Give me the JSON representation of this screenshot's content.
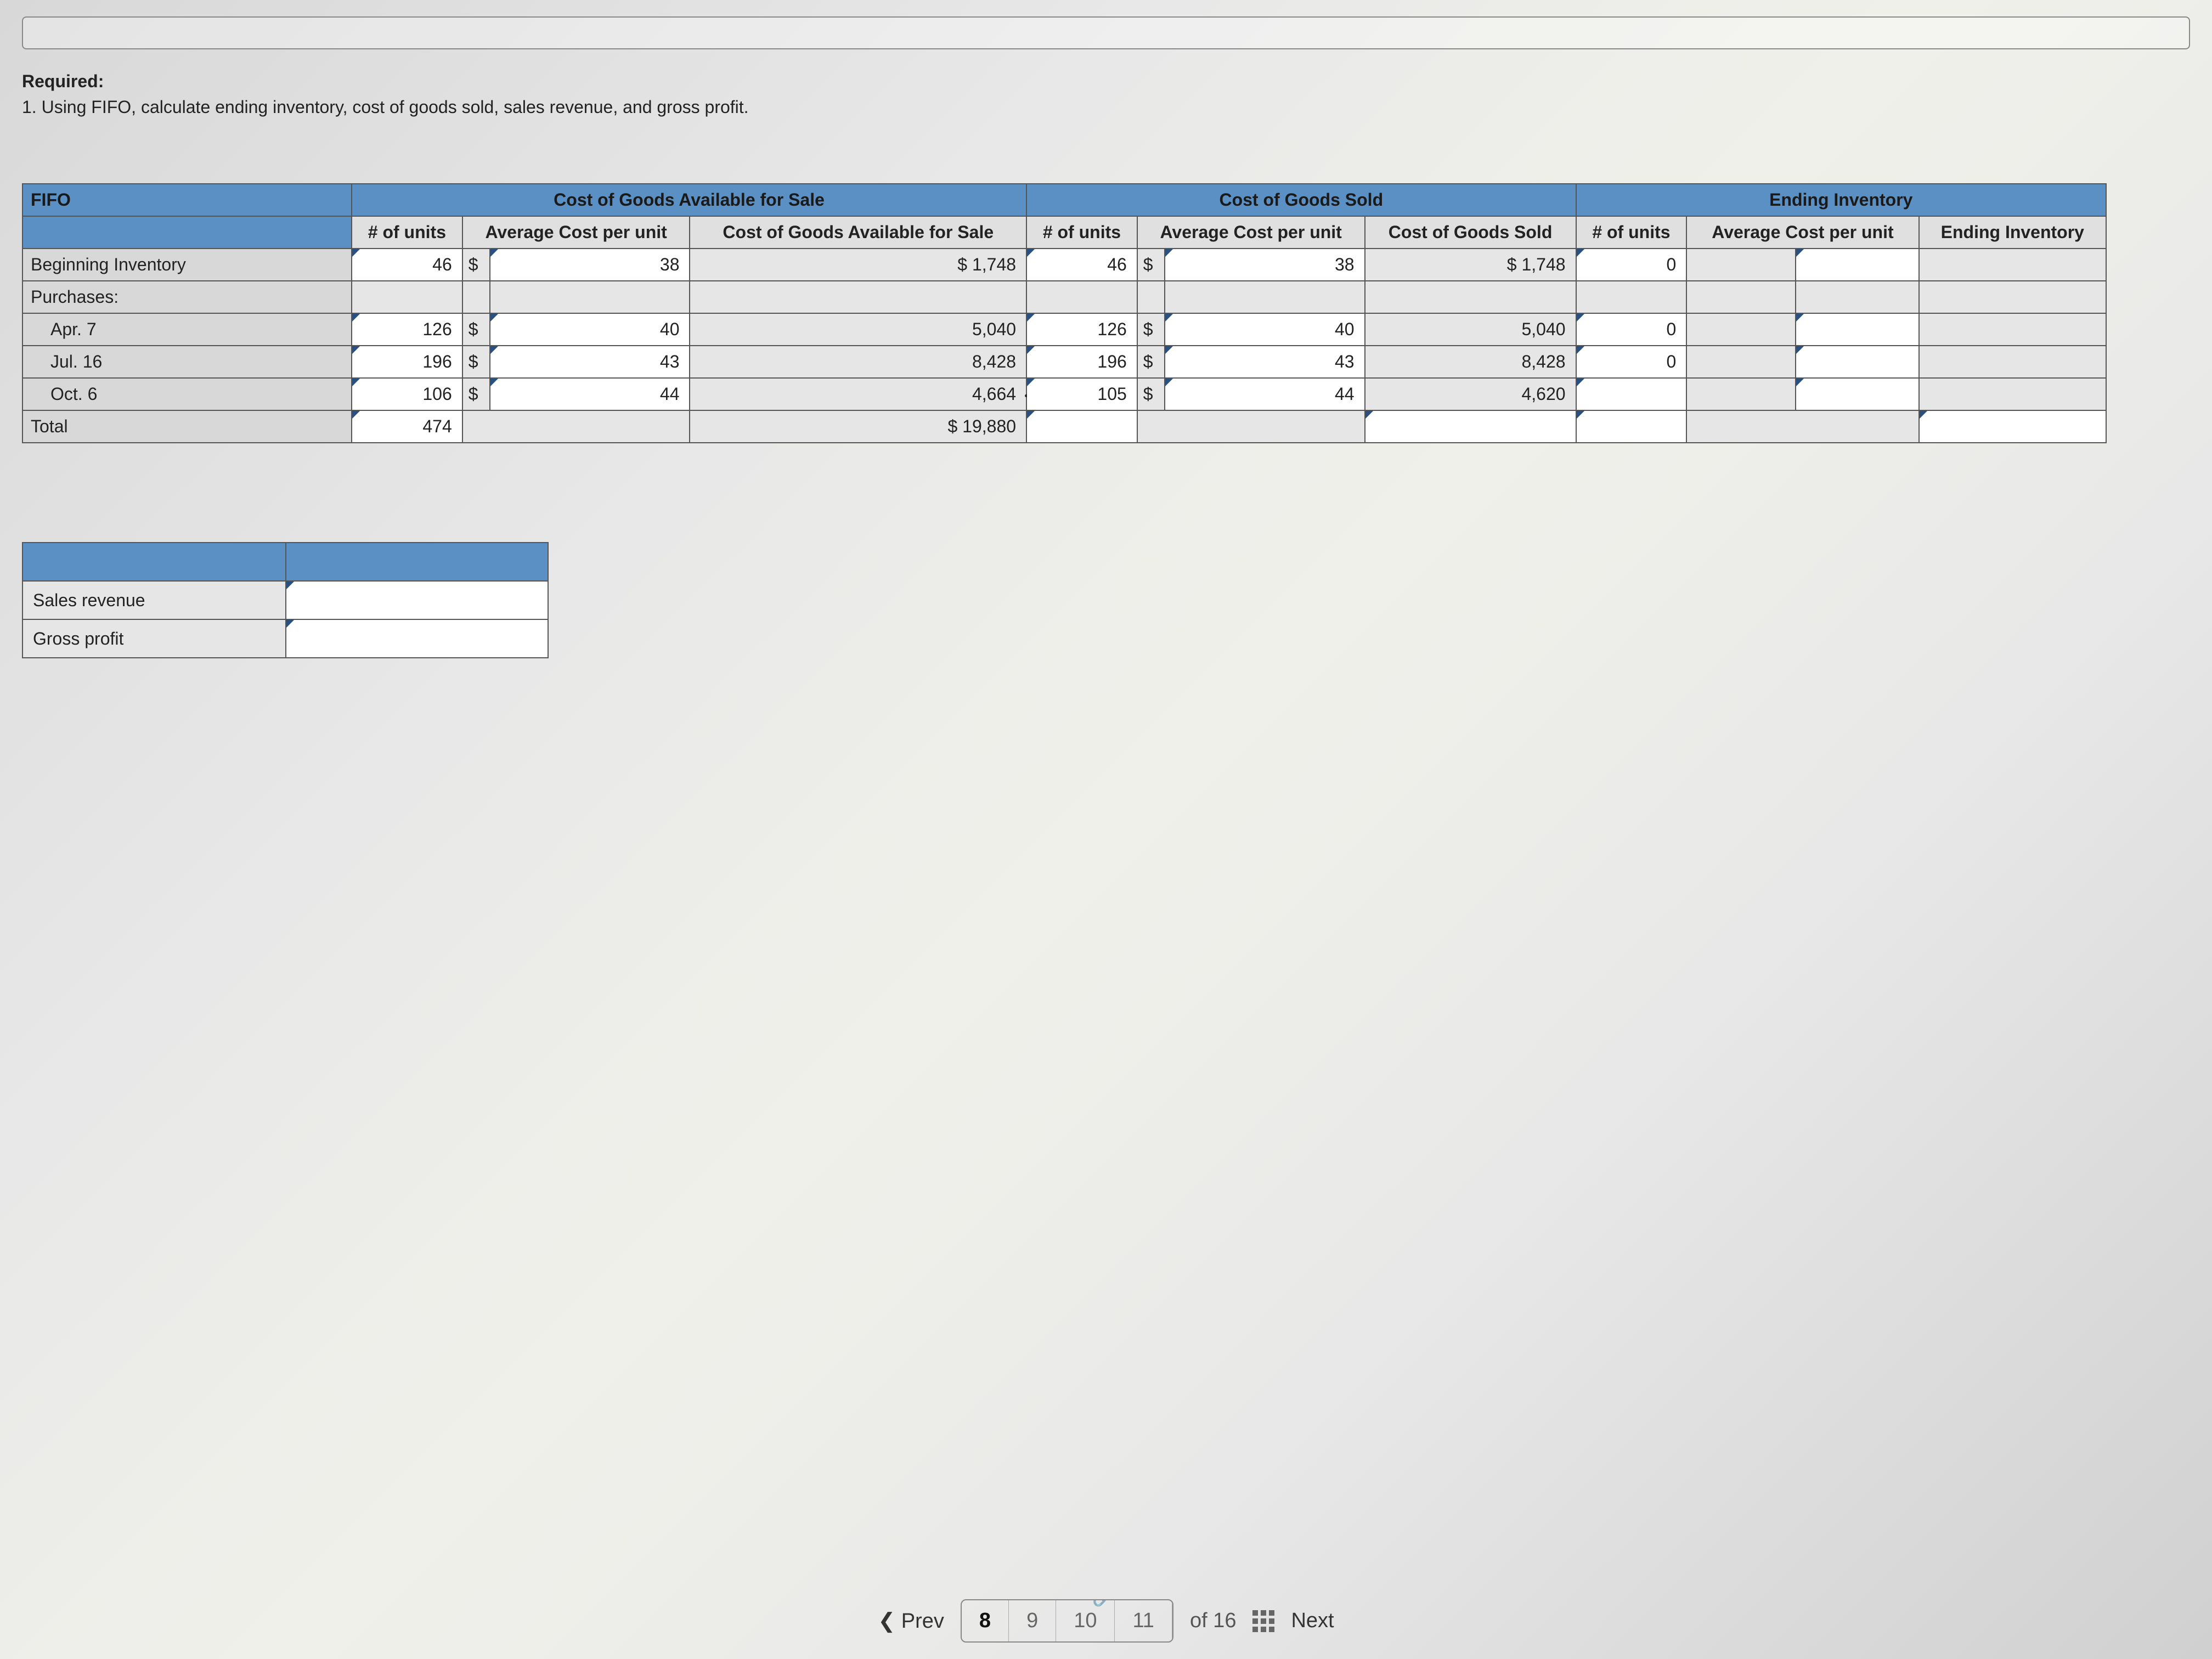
{
  "question": {
    "required_label": "Required:",
    "text": "1. Using FIFO, calculate ending inventory, cost of goods sold, sales revenue, and gross profit."
  },
  "table": {
    "method": "FIFO",
    "groups": [
      "Cost of Goods Available for Sale",
      "Cost of Goods Sold",
      "Ending Inventory"
    ],
    "subheaders": {
      "units": "# of units",
      "avg_cost": "Average Cost per unit",
      "cogas": "Cost of Goods Available for Sale",
      "cogs_cost": "Average Cost per unit",
      "cogs": "Cost of Goods Sold",
      "ei_cost": "Average Cost per unit",
      "ei": "Ending Inventory"
    },
    "rows": [
      {
        "label": "Beginning Inventory",
        "a_units": "46",
        "a_cost": "38",
        "a_total": "1,748",
        "c_units": "46",
        "c_cost": "38",
        "c_total": "1,748",
        "e_units": "0",
        "e_cost": "",
        "e_total": "",
        "input": true
      },
      {
        "label": "Purchases:",
        "purch_header": true
      },
      {
        "label": "Apr. 7",
        "a_units": "126",
        "a_cost": "40",
        "a_total": "5,040",
        "c_units": "126",
        "c_cost": "40",
        "c_total": "5,040",
        "e_units": "0",
        "e_cost": "",
        "e_total": "",
        "input": true,
        "indent": true
      },
      {
        "label": "Jul. 16",
        "a_units": "196",
        "a_cost": "43",
        "a_total": "8,428",
        "c_units": "196",
        "c_cost": "43",
        "c_total": "8,428",
        "e_units": "0",
        "e_cost": "",
        "e_total": "",
        "input": true,
        "indent": true
      },
      {
        "label": "Oct. 6",
        "a_units": "106",
        "a_cost": "44",
        "a_total": "4,664",
        "c_units": "105",
        "c_cost": "44",
        "c_total": "4,620",
        "e_units": "",
        "e_cost": "",
        "e_total": "",
        "input": true,
        "indent": true,
        "cursor": true
      },
      {
        "label": "Total",
        "a_units": "474",
        "a_total_d": "$",
        "a_total": "19,880",
        "total_row": true
      }
    ]
  },
  "summary": {
    "rows": [
      "Sales revenue",
      "Gross profit"
    ]
  },
  "nav": {
    "prev": "Prev",
    "next": "Next",
    "pages": [
      "8",
      "9",
      "10",
      "11"
    ],
    "active": "8",
    "of_label": "of 16"
  },
  "colors": {
    "header_bg": "#5a90c4",
    "cell_bg": "#e6e6e6",
    "border": "#555555",
    "triangle": "#2a5080"
  }
}
